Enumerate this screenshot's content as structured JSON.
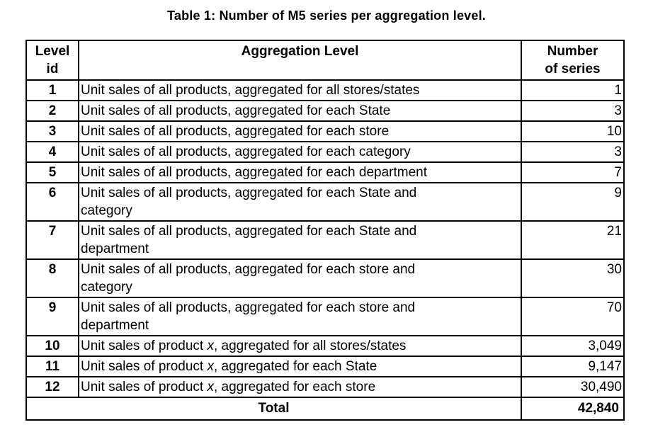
{
  "title": "Table 1: Number of M5 series per aggregation level.",
  "table": {
    "headers": {
      "level_line1": "Level",
      "level_line2": "id",
      "aggregation": "Aggregation Level",
      "number_line1": "Number",
      "number_line2": "of series"
    },
    "rows": [
      {
        "id": "1",
        "desc": [
          [
            {
              "t": "Unit sales of all products, aggregated for all stores/states"
            }
          ]
        ],
        "count": "1"
      },
      {
        "id": "2",
        "desc": [
          [
            {
              "t": "Unit sales of all products, aggregated for each State"
            }
          ]
        ],
        "count": "3"
      },
      {
        "id": "3",
        "desc": [
          [
            {
              "t": "Unit sales of all products, aggregated for each store"
            }
          ]
        ],
        "count": "10"
      },
      {
        "id": "4",
        "desc": [
          [
            {
              "t": "Unit sales of all products, aggregated for each category"
            }
          ]
        ],
        "count": "3"
      },
      {
        "id": "5",
        "desc": [
          [
            {
              "t": "Unit sales of all products, aggregated for each department"
            }
          ]
        ],
        "count": "7"
      },
      {
        "id": "6",
        "desc": [
          [
            {
              "t": "Unit sales of all products, aggregated for each State and"
            }
          ],
          [
            {
              "t": "category"
            }
          ]
        ],
        "count": "9"
      },
      {
        "id": "7",
        "desc": [
          [
            {
              "t": "Unit sales of all products, aggregated for each State and"
            }
          ],
          [
            {
              "t": "department"
            }
          ]
        ],
        "count": "21"
      },
      {
        "id": "8",
        "desc": [
          [
            {
              "t": "Unit sales of all products, aggregated for each store and"
            }
          ],
          [
            {
              "t": "category"
            }
          ]
        ],
        "count": "30"
      },
      {
        "id": "9",
        "desc": [
          [
            {
              "t": "Unit sales of all products, aggregated for each store and"
            }
          ],
          [
            {
              "t": "department"
            }
          ]
        ],
        "count": "70"
      },
      {
        "id": "10",
        "desc": [
          [
            {
              "t": "Unit sales of product "
            },
            {
              "t": "x",
              "i": true
            },
            {
              "t": ", aggregated for all stores/states"
            }
          ]
        ],
        "count": "3,049"
      },
      {
        "id": "11",
        "desc": [
          [
            {
              "t": "Unit sales of product "
            },
            {
              "t": "x",
              "i": true
            },
            {
              "t": ", aggregated for each State"
            }
          ]
        ],
        "count": "9,147"
      },
      {
        "id": "12",
        "desc": [
          [
            {
              "t": "Unit sales of product "
            },
            {
              "t": "x",
              "i": true
            },
            {
              "t": ", aggregated for each store"
            }
          ]
        ],
        "count": "30,490"
      }
    ],
    "total_label": "Total",
    "total_value": "42,840"
  }
}
